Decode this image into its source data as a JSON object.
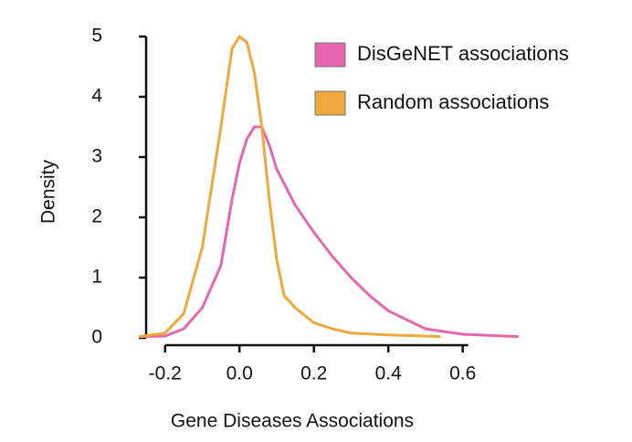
{
  "chart_data": {
    "type": "line",
    "x_label": "Gene Diseases Associations",
    "y_label": "Density",
    "xlim": [
      -0.3,
      0.78
    ],
    "ylim": [
      0,
      5
    ],
    "xticks": [
      -0.2,
      {
        "value": 0,
        "label": "0.0"
      },
      0.2,
      0.4,
      0.6
    ],
    "yticks": [
      0,
      1,
      2,
      3,
      4,
      5
    ],
    "series": [
      {
        "name": "DisGeNET associations",
        "color": "#e667b0",
        "x": [
          -0.27,
          -0.2,
          -0.15,
          -0.1,
          -0.05,
          -0.02,
          0,
          0.02,
          0.04,
          0.06,
          0.08,
          0.1,
          0.15,
          0.2,
          0.25,
          0.3,
          0.35,
          0.4,
          0.5,
          0.6,
          0.75
        ],
        "values": [
          0.02,
          0.03,
          0.15,
          0.5,
          1.2,
          2.3,
          2.9,
          3.3,
          3.5,
          3.5,
          3.2,
          2.8,
          2.2,
          1.75,
          1.35,
          1.0,
          0.7,
          0.45,
          0.15,
          0.06,
          0.02
        ]
      },
      {
        "name": "Random associations",
        "color": "#f0a83c",
        "x": [
          -0.27,
          -0.2,
          -0.15,
          -0.1,
          -0.05,
          -0.02,
          0,
          0.02,
          0.04,
          0.06,
          0.08,
          0.1,
          0.12,
          0.15,
          0.18,
          0.2,
          0.25,
          0.3,
          0.4,
          0.5,
          0.54
        ],
        "values": [
          0.02,
          0.08,
          0.4,
          1.5,
          3.5,
          4.8,
          5.0,
          4.9,
          4.4,
          3.5,
          2.3,
          1.3,
          0.7,
          0.5,
          0.35,
          0.25,
          0.15,
          0.08,
          0.05,
          0.03,
          0.02
        ]
      }
    ]
  }
}
